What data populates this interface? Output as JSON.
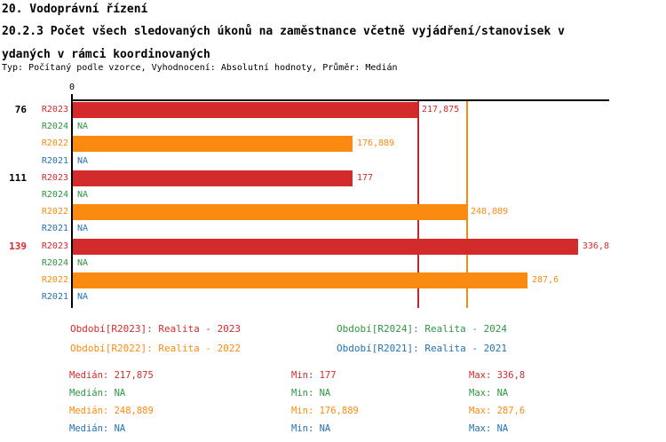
{
  "header": {
    "title": "20. Vodoprávní řízení",
    "subtitle_line1": "20.2.3 Počet všech sledovaných úkonů na zaměstnance včetně vyjádření/stanovisek v",
    "subtitle_line2": "ydaných v rámci koordinovaných",
    "meta": "Typ: Počítaný podle vzorce, Vyhodnocení: Absolutní hodnoty, Průměr: Medián"
  },
  "chart_data": {
    "type": "bar",
    "orientation": "horizontal",
    "title": "20.2.3 Počet všech sledovaných úkonů na zaměstnance včetně vyjádření/stanovisek vydaných v rámci koordinovaných",
    "axis": {
      "zero_label": "0",
      "min": 0,
      "max": 336.8
    },
    "grid": false,
    "colors": {
      "R2023": "#d32b2b",
      "R2024": "#2e9640",
      "R2022": "#fb8b10",
      "R2021": "#2273b0",
      "axis": "#000000"
    },
    "median_lines": [
      {
        "series": "R2023",
        "value": 217.875,
        "color": "#c2272b"
      },
      {
        "series": "R2022",
        "value": 248.889,
        "color": "#fb8b10"
      }
    ],
    "groups": [
      {
        "label": "76",
        "label_color": "#000000",
        "rows": [
          {
            "series": "R2023",
            "value": 217.875,
            "display": "217,875"
          },
          {
            "series": "R2024",
            "value": null,
            "display": "NA"
          },
          {
            "series": "R2022",
            "value": 176.889,
            "display": "176,889"
          },
          {
            "series": "R2021",
            "value": null,
            "display": "NA"
          }
        ]
      },
      {
        "label": "111",
        "label_color": "#000000",
        "rows": [
          {
            "series": "R2023",
            "value": 177,
            "display": "177"
          },
          {
            "series": "R2024",
            "value": null,
            "display": "NA"
          },
          {
            "series": "R2022",
            "value": 248.889,
            "display": "248,889"
          },
          {
            "series": "R2021",
            "value": null,
            "display": "NA"
          }
        ]
      },
      {
        "label": "139",
        "label_color": "#d32b2b",
        "rows": [
          {
            "series": "R2023",
            "value": 336.8,
            "display": "336,8"
          },
          {
            "series": "R2024",
            "value": null,
            "display": "NA"
          },
          {
            "series": "R2022",
            "value": 287.6,
            "display": "287,6"
          },
          {
            "series": "R2021",
            "value": null,
            "display": "NA"
          }
        ]
      }
    ]
  },
  "legend": {
    "items": [
      {
        "series": "R2023",
        "label": "Období[R2023]: Realita - 2023"
      },
      {
        "series": "R2024",
        "label": "Období[R2024]: Realita - 2024"
      },
      {
        "series": "R2022",
        "label": "Období[R2022]: Realita - 2022"
      },
      {
        "series": "R2021",
        "label": "Období[R2021]: Realita - 2021"
      }
    ]
  },
  "stats": {
    "rows": [
      {
        "series": "R2023",
        "median": "Medián: 217,875",
        "min": "Min: 177",
        "max": "Max: 336,8"
      },
      {
        "series": "R2024",
        "median": "Medián: NA",
        "min": "Min: NA",
        "max": "Max: NA"
      },
      {
        "series": "R2022",
        "median": "Medián: 248,889",
        "min": "Min: 176,889",
        "max": "Max: 287,6"
      },
      {
        "series": "R2021",
        "median": "Medián: NA",
        "min": "Min: NA",
        "max": "Max: NA"
      }
    ]
  }
}
